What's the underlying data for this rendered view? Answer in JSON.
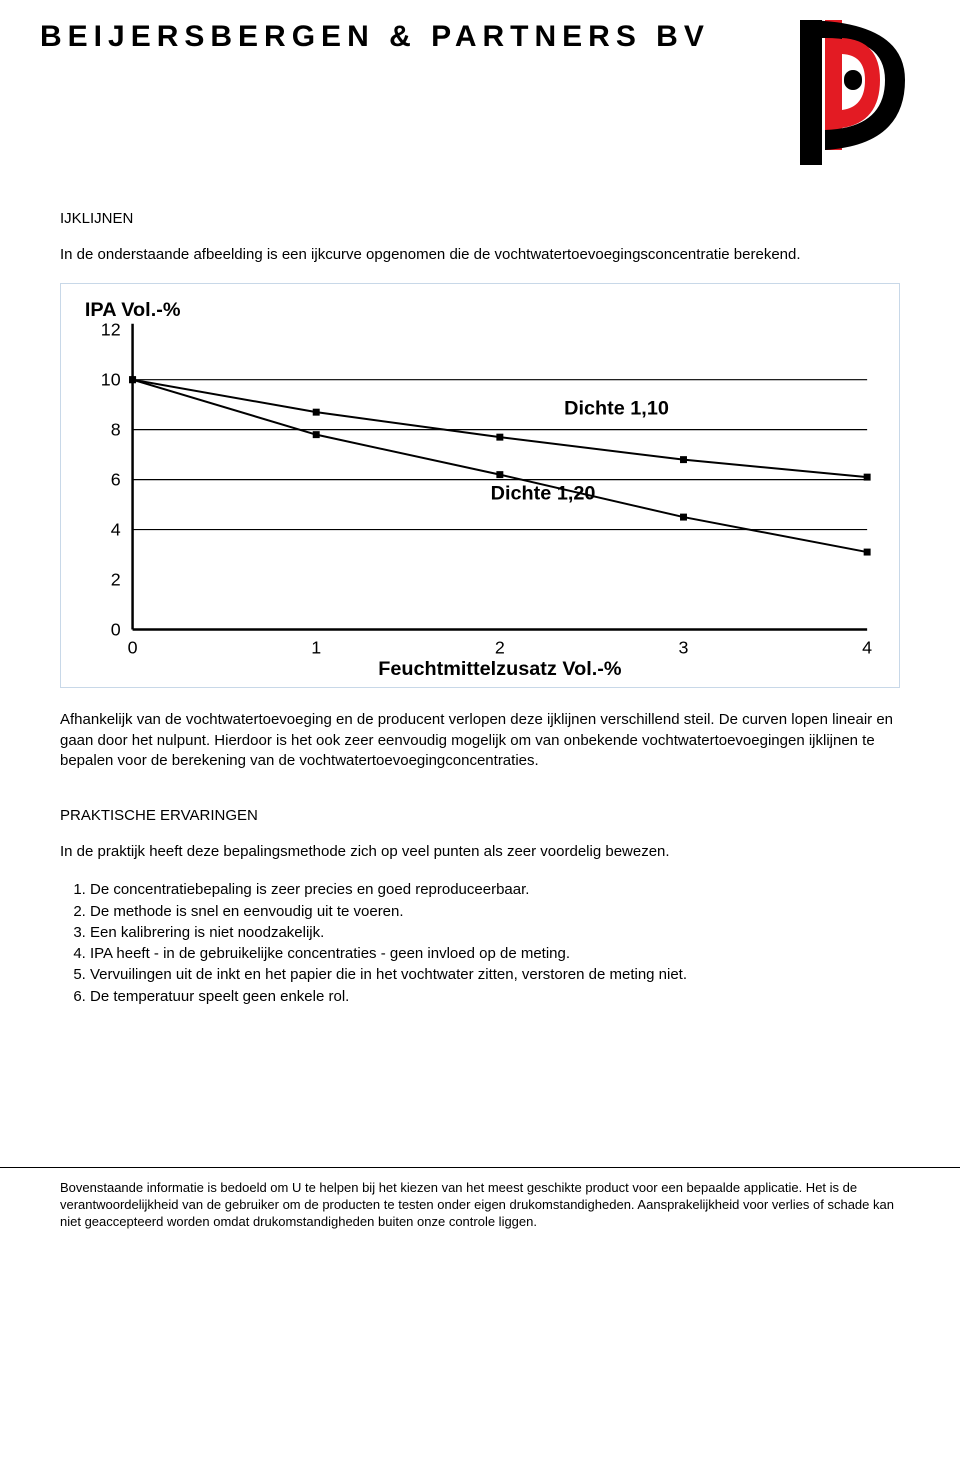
{
  "header": {
    "company_name": "BEIJERSBERGEN & PARTNERS BV"
  },
  "logo": {
    "outer_color": "#000000",
    "inner_color": "#e31b23",
    "bg": "#ffffff"
  },
  "section1": {
    "title": "IJKLIJNEN",
    "intro": "In de onderstaande afbeelding is een ijkcurve opgenomen die de vochtwatertoevoegingsconcentratie berekend."
  },
  "chart": {
    "type": "line",
    "y_title": "IPA Vol.-%",
    "x_title": "Feuchtmittelzusatz Vol.-%",
    "ylim": [
      0,
      12
    ],
    "xlim": [
      0,
      4
    ],
    "yticks": [
      0,
      2,
      4,
      6,
      8,
      10,
      12
    ],
    "xticks": [
      0,
      1,
      2,
      3,
      4
    ],
    "tick_fontsize": 18,
    "title_fontsize": 20,
    "label_fontsize": 20,
    "background_color": "#ffffff",
    "axis_color": "#000000",
    "gridline_color": "#000000",
    "gridline_width": 1.2,
    "line_color": "#000000",
    "line_width": 2,
    "marker_color": "#000000",
    "marker_size": 7,
    "gridlines_y": [
      4,
      6,
      8,
      10
    ],
    "series": [
      {
        "label": "Dichte 1,10",
        "label_pos": {
          "x": 2.35,
          "y": 8.6
        },
        "points": [
          {
            "x": 0,
            "y": 10.0
          },
          {
            "x": 1,
            "y": 8.7
          },
          {
            "x": 2,
            "y": 7.7
          },
          {
            "x": 3,
            "y": 6.8
          },
          {
            "x": 4,
            "y": 6.1
          }
        ]
      },
      {
        "label": "Dichte 1,20",
        "label_pos": {
          "x": 1.95,
          "y": 5.2
        },
        "points": [
          {
            "x": 0,
            "y": 10.0
          },
          {
            "x": 1,
            "y": 7.8
          },
          {
            "x": 2,
            "y": 6.2
          },
          {
            "x": 3,
            "y": 4.5
          },
          {
            "x": 4,
            "y": 3.1
          }
        ]
      }
    ]
  },
  "section1_after": "Afhankelijk van de vochtwatertoevoeging en de producent verlopen deze ijklijnen verschillend steil. De curven lopen lineair en gaan door het nulpunt. Hierdoor is het ook zeer eenvoudig mogelijk om van onbekende vochtwatertoevoegingen ijklijnen te bepalen voor de berekening van de vochtwatertoevoegingconcentraties.",
  "section2": {
    "title": "PRAKTISCHE ERVARINGEN",
    "intro": "In de praktijk heeft deze bepalingsmethode zich op veel punten als zeer voordelig bewezen.",
    "items": [
      "De concentratiebepaling is zeer precies en goed reproduceerbaar.",
      "De methode is snel en eenvoudig uit te voeren.",
      "Een kalibrering is niet noodzakelijk.",
      "IPA heeft - in de gebruikelijke concentraties - geen invloed op de meting.",
      "Vervuilingen uit de inkt en het papier die in het vochtwater zitten, verstoren de meting niet.",
      "De temperatuur speelt geen enkele rol."
    ]
  },
  "disclaimer": "Bovenstaande informatie is bedoeld om U te helpen bij het kiezen van het meest geschikte product voor een bepaalde applicatie. Het is de verantwoordelijkheid van de gebruiker om de producten te testen onder eigen drukomstandigheden. Aansprakelijkheid voor verlies of schade kan niet geaccepteerd worden omdat drukomstandigheden buiten onze controle liggen."
}
